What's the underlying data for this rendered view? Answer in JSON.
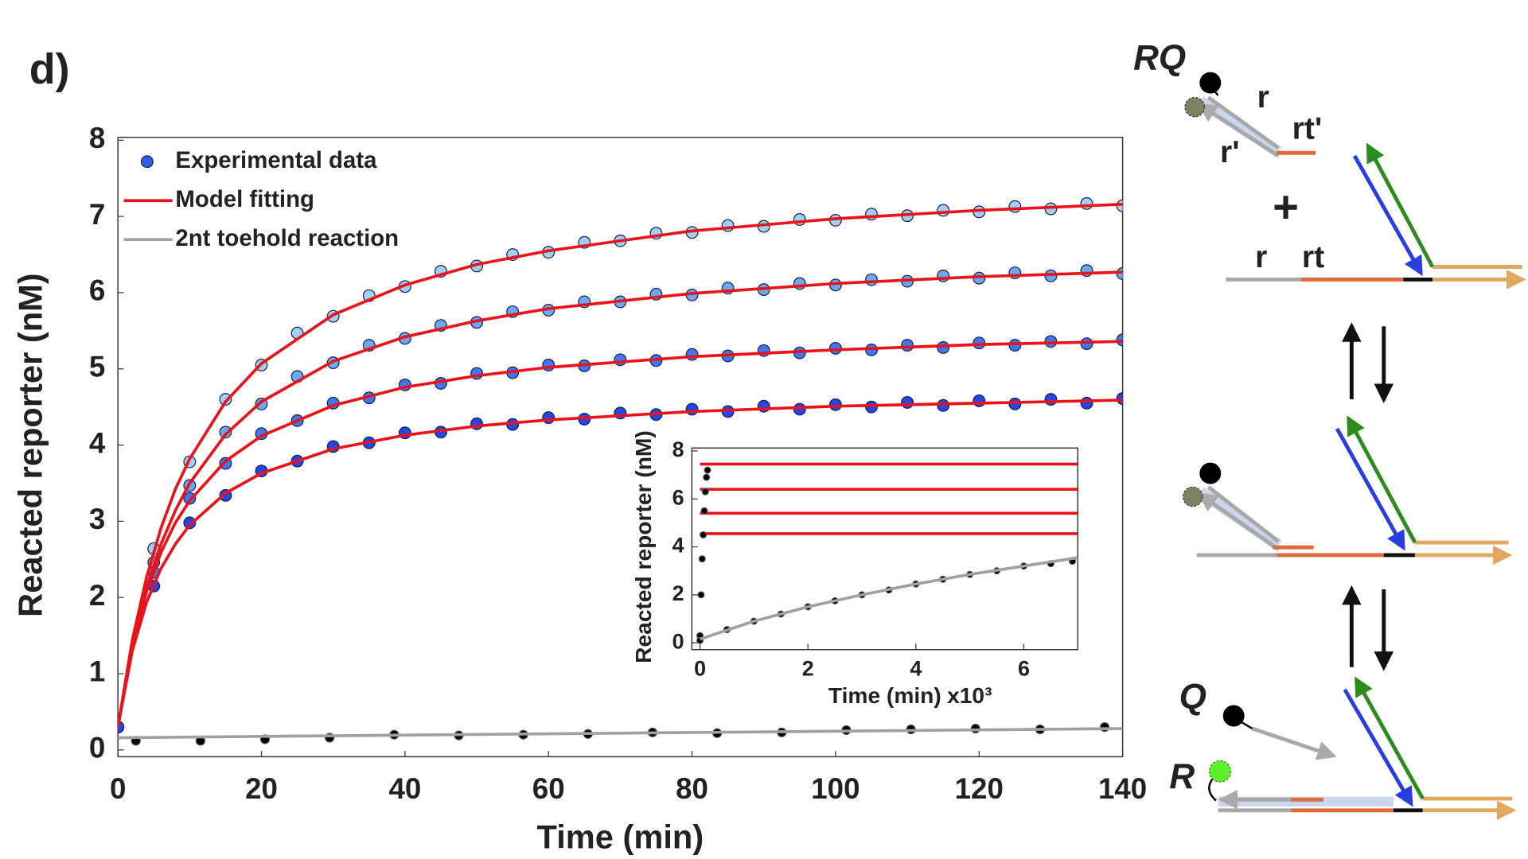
{
  "panel_label": "d)",
  "chart_data": [
    {
      "type": "scatter",
      "xlabel": "Time (min)",
      "ylabel": "Reacted reporter (nM)",
      "xlim": [
        0,
        140
      ],
      "xticks": [
        0,
        20,
        40,
        60,
        80,
        100,
        120,
        140
      ],
      "ylim": [
        0,
        8
      ],
      "yticks": [
        0,
        1,
        2,
        3,
        4,
        5,
        6,
        7,
        8
      ],
      "legend": "upper left",
      "series": [
        {
          "name": "Experimental data",
          "mode": "markers",
          "color": "#9fd0f2",
          "x": [
            0,
            5,
            10,
            15,
            20,
            25,
            30,
            35,
            40,
            45,
            50,
            55,
            60,
            65,
            70,
            75,
            80,
            85,
            90,
            95,
            100,
            105,
            110,
            115,
            120,
            125,
            130,
            135,
            140
          ],
          "values": [
            0.3,
            2.64,
            3.78,
            4.6,
            5.05,
            5.47,
            5.69,
            5.96,
            6.08,
            6.28,
            6.35,
            6.5,
            6.53,
            6.66,
            6.68,
            6.78,
            6.79,
            6.88,
            6.87,
            6.96,
            6.95,
            7.03,
            7.01,
            7.08,
            7.06,
            7.13,
            7.1,
            7.17,
            7.14
          ]
        },
        {
          "mode": "markers",
          "color": "#6aa8f0",
          "x": [
            0,
            5,
            10,
            15,
            20,
            25,
            30,
            35,
            40,
            45,
            50,
            55,
            60,
            65,
            70,
            75,
            80,
            85,
            90,
            95,
            100,
            105,
            110,
            115,
            120,
            125,
            130,
            135,
            140
          ],
          "values": [
            0.3,
            2.46,
            3.47,
            4.17,
            4.54,
            4.9,
            5.08,
            5.31,
            5.4,
            5.57,
            5.61,
            5.75,
            5.77,
            5.88,
            5.88,
            5.98,
            5.97,
            6.06,
            6.04,
            6.12,
            6.1,
            6.17,
            6.15,
            6.22,
            6.19,
            6.26,
            6.22,
            6.29,
            6.25
          ]
        },
        {
          "mode": "markers",
          "color": "#3d78ee",
          "x": [
            0,
            5,
            10,
            15,
            20,
            25,
            30,
            35,
            40,
            45,
            50,
            55,
            60,
            65,
            70,
            75,
            80,
            85,
            90,
            95,
            100,
            105,
            110,
            115,
            120,
            125,
            130,
            135,
            140
          ],
          "values": [
            0.3,
            2.33,
            3.3,
            3.76,
            4.15,
            4.32,
            4.55,
            4.62,
            4.79,
            4.81,
            4.94,
            4.95,
            5.05,
            5.04,
            5.12,
            5.11,
            5.19,
            5.17,
            5.24,
            5.21,
            5.27,
            5.25,
            5.31,
            5.28,
            5.34,
            5.31,
            5.36,
            5.33,
            5.38
          ]
        },
        {
          "mode": "markers",
          "color": "#2446e4",
          "x": [
            0,
            5,
            10,
            15,
            20,
            25,
            30,
            35,
            40,
            45,
            50,
            55,
            60,
            65,
            70,
            75,
            80,
            85,
            90,
            95,
            100,
            105,
            110,
            115,
            120,
            125,
            130,
            135,
            140
          ],
          "values": [
            0.3,
            2.15,
            2.98,
            3.34,
            3.66,
            3.79,
            3.98,
            4.03,
            4.16,
            4.17,
            4.28,
            4.27,
            4.36,
            4.34,
            4.42,
            4.4,
            4.47,
            4.44,
            4.51,
            4.47,
            4.53,
            4.5,
            4.56,
            4.52,
            4.58,
            4.54,
            4.6,
            4.55,
            4.61
          ]
        },
        {
          "mode": "markers",
          "color": "#000000",
          "x": [
            2.5,
            11.5,
            20.5,
            29.5,
            38.5,
            47.5,
            56.5,
            65.5,
            74.5,
            83.5,
            92.5,
            101.5,
            110.5,
            119.5,
            128.5,
            137.5
          ],
          "values": [
            0.12,
            0.12,
            0.14,
            0.16,
            0.2,
            0.19,
            0.2,
            0.21,
            0.23,
            0.22,
            0.23,
            0.26,
            0.27,
            0.28,
            0.27,
            0.3
          ]
        },
        {
          "name": "Model fitting",
          "mode": "line",
          "color": "#e8141c",
          "x": [
            0,
            2,
            4,
            6,
            8,
            10,
            15,
            20,
            30,
            40,
            50,
            60,
            80,
            100,
            120,
            140
          ],
          "values": [
            0.3,
            1.44,
            2.27,
            2.91,
            3.42,
            3.82,
            4.57,
            5.07,
            5.71,
            6.1,
            6.37,
            6.55,
            6.81,
            6.97,
            7.08,
            7.16
          ]
        },
        {
          "mode": "line",
          "color": "#e8141c",
          "x": [
            0,
            2,
            4,
            6,
            8,
            10,
            15,
            20,
            30,
            40,
            50,
            60,
            80,
            100,
            120,
            140
          ],
          "values": [
            0.3,
            1.37,
            2.13,
            2.7,
            3.14,
            3.5,
            4.14,
            4.57,
            5.1,
            5.42,
            5.63,
            5.79,
            5.99,
            6.12,
            6.21,
            6.27
          ]
        },
        {
          "mode": "line",
          "color": "#e8141c",
          "x": [
            0,
            2,
            4,
            6,
            8,
            10,
            15,
            20,
            30,
            40,
            50,
            60,
            80,
            100,
            120,
            140
          ],
          "values": [
            0.3,
            1.37,
            2.08,
            2.59,
            2.98,
            3.27,
            3.79,
            4.12,
            4.52,
            4.76,
            4.91,
            5.02,
            5.16,
            5.25,
            5.32,
            5.36
          ]
        },
        {
          "mode": "line",
          "color": "#e8141c",
          "x": [
            0,
            2,
            4,
            6,
            8,
            10,
            15,
            20,
            30,
            40,
            50,
            60,
            80,
            100,
            120,
            140
          ],
          "values": [
            0.3,
            1.3,
            1.94,
            2.38,
            2.7,
            2.95,
            3.37,
            3.63,
            3.95,
            4.13,
            4.25,
            4.33,
            4.44,
            4.51,
            4.55,
            4.59
          ]
        },
        {
          "name": "2nt toehold reaction",
          "mode": "line",
          "color": "#a0a0a0",
          "x": [
            0,
            140
          ],
          "values": [
            0.16,
            0.28
          ]
        }
      ]
    },
    {
      "type": "scatter",
      "xlabel": "Time (min)",
      "x_multiplier": "x10³",
      "ylabel": "Reacted reporter (nM)",
      "xlim": [
        -0.15,
        7
      ],
      "xticks": [
        0,
        2,
        4,
        6
      ],
      "ylim": [
        0,
        8
      ],
      "yticks": [
        0,
        2,
        4,
        6,
        8
      ],
      "series": [
        {
          "mode": "line",
          "color": "#e8141c",
          "x": [
            0,
            7
          ],
          "values": [
            4.55,
            4.55
          ]
        },
        {
          "mode": "line",
          "color": "#e8141c",
          "x": [
            0,
            7
          ],
          "values": [
            5.4,
            5.4
          ]
        },
        {
          "mode": "line",
          "color": "#e8141c",
          "x": [
            0,
            7
          ],
          "values": [
            6.4,
            6.4
          ]
        },
        {
          "mode": "line",
          "color": "#e8141c",
          "x": [
            0,
            7
          ],
          "values": [
            7.45,
            7.45
          ]
        },
        {
          "mode": "markers",
          "color": "#000000",
          "x": [
            0,
            0.02,
            0.04,
            0.06,
            0.08,
            0.1,
            0.12,
            0.14
          ],
          "values": [
            0.3,
            2,
            3.5,
            4.5,
            5.5,
            6.3,
            6.9,
            7.2
          ]
        },
        {
          "mode": "markers",
          "color": "#000000",
          "x": [
            0,
            0.5,
            1,
            1.5,
            2,
            2.5,
            3,
            3.5,
            4,
            4.5,
            5,
            5.5,
            6,
            6.5,
            6.9
          ],
          "values": [
            0.1,
            0.55,
            0.9,
            1.2,
            1.5,
            1.75,
            2.0,
            2.2,
            2.45,
            2.65,
            2.85,
            3.0,
            3.2,
            3.3,
            3.4
          ]
        },
        {
          "mode": "line",
          "color": "#a0a0a0",
          "x": [
            0,
            1,
            2,
            3,
            4,
            5,
            6,
            7
          ],
          "values": [
            0.15,
            0.9,
            1.5,
            2.0,
            2.45,
            2.85,
            3.2,
            3.55
          ]
        }
      ]
    }
  ],
  "diagram": {
    "labels": [
      "RQ",
      "r",
      "rt'",
      "r'",
      "+",
      "r",
      "rt",
      "Q",
      "R"
    ]
  }
}
